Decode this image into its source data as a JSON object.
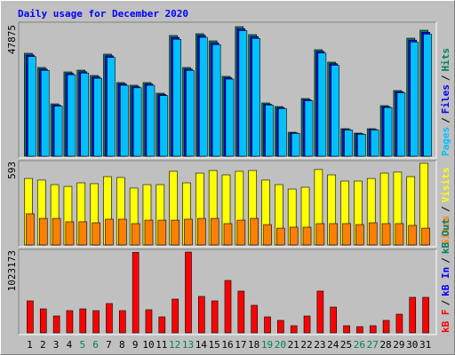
{
  "title": "Daily usage for December 2020",
  "legend_separator": "/",
  "chart_data": [
    {
      "type": "bar",
      "ylim": [
        0,
        47875
      ],
      "yticks": [
        47875
      ],
      "series": [
        {
          "name": "Hits",
          "color": "#00805c",
          "values": [
            38036,
            32790,
            19346,
            31150,
            31806,
            29839,
            37709,
            27216,
            26232,
            27216,
            23281,
            44594,
            32790,
            45250,
            42627,
            29511,
            47875,
            44922,
            19674,
            18362,
            8853,
            21314,
            39348,
            34757,
            10165,
            8525,
            10165,
            18690,
            24265,
            43611,
            46562
          ]
        },
        {
          "name": "Files",
          "color": "#0000ff",
          "values": [
            37400,
            32200,
            18900,
            30600,
            31200,
            29300,
            37100,
            26700,
            25700,
            26700,
            22800,
            43900,
            32200,
            44600,
            41900,
            29000,
            47100,
            44200,
            19200,
            17900,
            8600,
            20900,
            38700,
            34200,
            9900,
            8300,
            9900,
            18300,
            23800,
            42900,
            45800
          ]
        },
        {
          "name": "Pages",
          "color": "#00c0ff",
          "values": [
            36800,
            31700,
            18500,
            30100,
            30700,
            28800,
            36500,
            26200,
            25300,
            26200,
            22400,
            43200,
            31700,
            43900,
            41200,
            28500,
            46400,
            43500,
            18900,
            17600,
            8400,
            20500,
            38100,
            33600,
            9700,
            8100,
            9700,
            18000,
            23400,
            42200,
            45100
          ]
        }
      ]
    },
    {
      "type": "bar",
      "ylim": [
        0,
        593
      ],
      "yticks": [
        593
      ],
      "series": [
        {
          "name": "Visits",
          "color": "#ffff00",
          "values": [
            483,
            471,
            438,
            425,
            451,
            445,
            496,
            490,
            413,
            438,
            438,
            535,
            451,
            522,
            541,
            509,
            535,
            541,
            471,
            438,
            406,
            419,
            548,
            509,
            464,
            464,
            483,
            522,
            529,
            496,
            593
          ]
        },
        {
          "name": "Sites",
          "color": "#ff8000",
          "values": [
            226,
            193,
            193,
            168,
            168,
            161,
            187,
            187,
            155,
            180,
            180,
            180,
            187,
            193,
            193,
            155,
            180,
            193,
            148,
            122,
            129,
            129,
            155,
            155,
            155,
            148,
            161,
            155,
            155,
            142,
            122
          ]
        }
      ]
    },
    {
      "type": "bar",
      "ylim": [
        0,
        1023173
      ],
      "yticks": [
        1023173
      ],
      "categories": [
        "1",
        "2",
        "3",
        "4",
        "5",
        "6",
        "7",
        "8",
        "9",
        "10",
        "11",
        "12",
        "13",
        "14",
        "15",
        "16",
        "17",
        "18",
        "19",
        "20",
        "21",
        "22",
        "23",
        "24",
        "25",
        "26",
        "27",
        "28",
        "29",
        "30",
        "31"
      ],
      "category_colors": [
        "#000000",
        "#000000",
        "#000000",
        "#000000",
        "#00805c",
        "#00805c",
        "#000000",
        "#000000",
        "#000000",
        "#000000",
        "#000000",
        "#00805c",
        "#00805c",
        "#000000",
        "#000000",
        "#000000",
        "#000000",
        "#000000",
        "#00805c",
        "#00805c",
        "#000000",
        "#000000",
        "#000000",
        "#000000",
        "#000000",
        "#00805c",
        "#00805c",
        "#000000",
        "#000000",
        "#000000",
        "#000000"
      ],
      "series": [
        {
          "name": "kB F",
          "color": "#ff0000",
          "values": [
            404784,
            303588,
            213636,
            281100,
            303588,
            281100,
            371052,
            281100,
            1019000,
            292344,
            202392,
            427272,
            1023173,
            460998,
            404784,
            663396,
            528468,
            348564,
            202392,
            157416,
            89952,
            213636,
            528468,
            326076,
            89952,
            78708,
            89952,
            157416,
            236124,
            449760,
            449760
          ]
        }
      ],
      "extra_legend": [
        {
          "name": "kB In",
          "color": "#0000ff"
        },
        {
          "name": "kB Out",
          "color": "#00805c"
        }
      ]
    }
  ]
}
